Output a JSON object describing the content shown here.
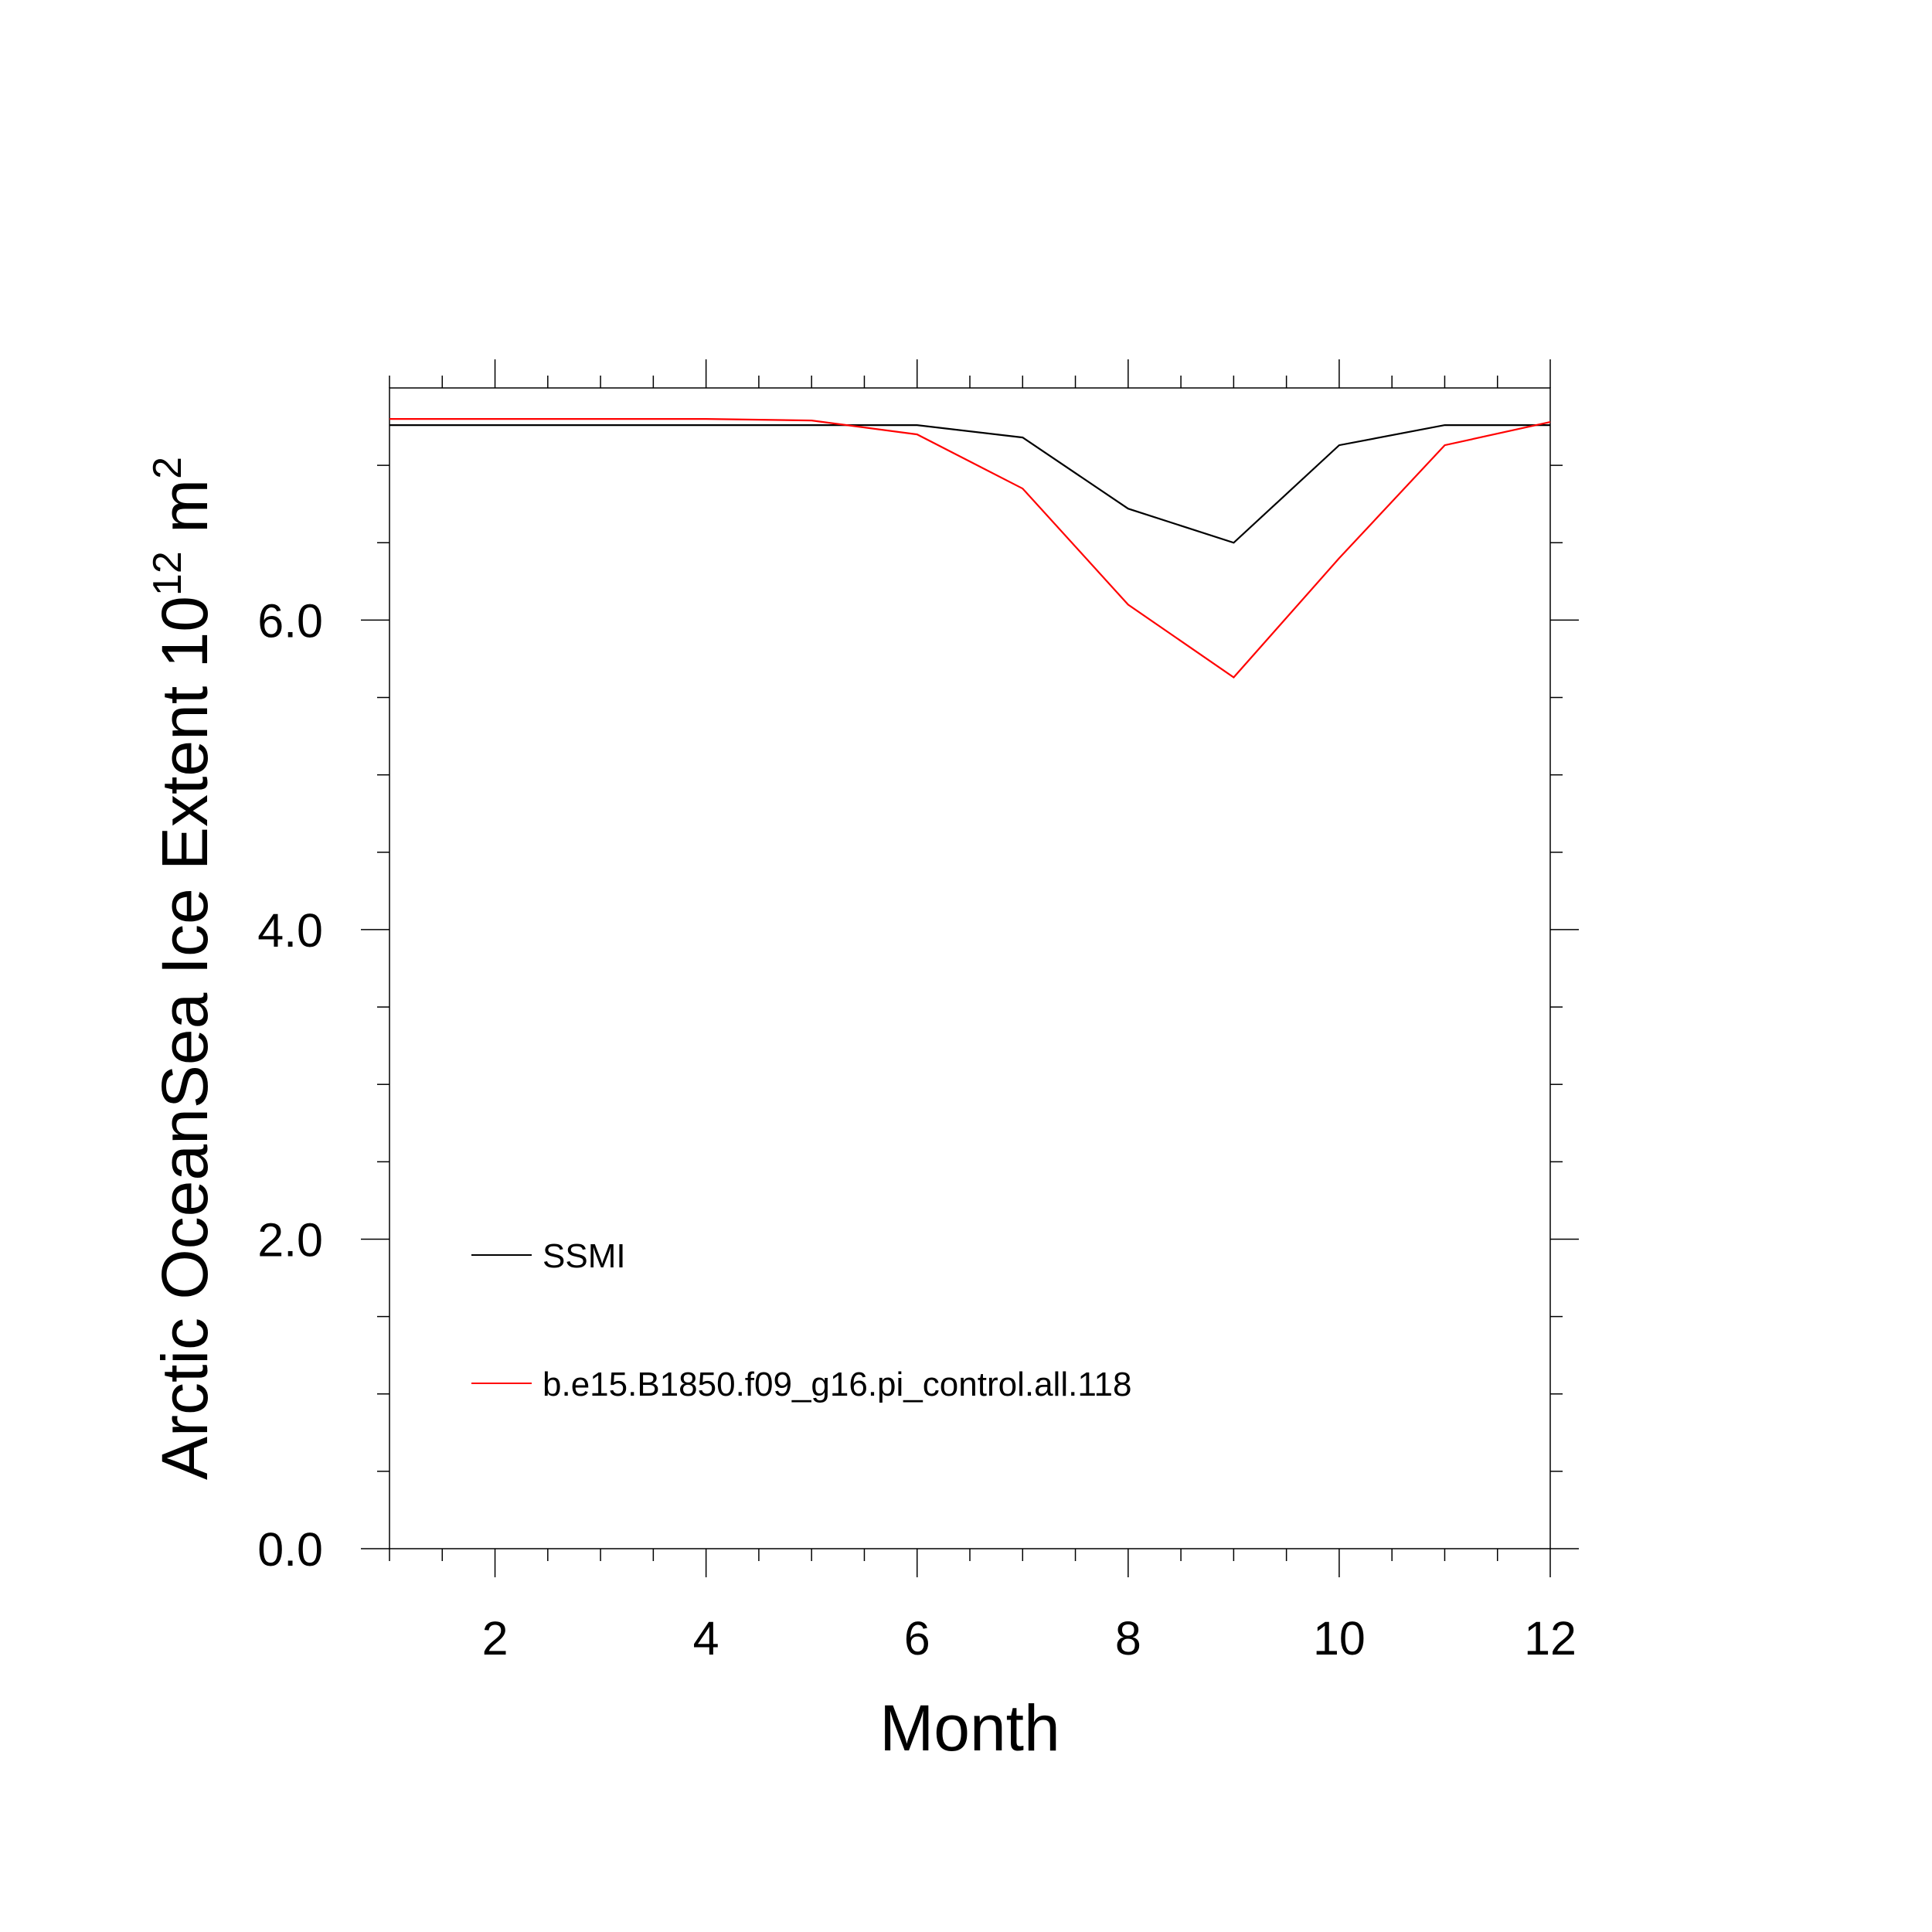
{
  "chart_data": {
    "type": "line",
    "title": "",
    "xlabel": "Month",
    "ylabel": {
      "prefix": "Arctic OceanSea Ice Extent 10",
      "exp1": "12",
      "unit": " m",
      "exp2": "2"
    },
    "xlim": [
      1,
      12
    ],
    "ylim": [
      0,
      7.5
    ],
    "x_ticks": [
      2,
      4,
      6,
      8,
      10,
      12
    ],
    "x_tick_labels": [
      "2",
      "4",
      "6",
      "8",
      "10",
      "12"
    ],
    "y_ticks": [
      0,
      2,
      4,
      6
    ],
    "y_tick_labels": [
      "0.0",
      "2.0",
      "4.0",
      "6.0"
    ],
    "grid": false,
    "legend_position": "lower-left",
    "x": [
      1,
      2,
      3,
      4,
      5,
      6,
      7,
      8,
      9,
      10,
      11,
      12
    ],
    "series": [
      {
        "name": "SSMI",
        "color": "#000000",
        "values": [
          7.26,
          7.26,
          7.26,
          7.26,
          7.26,
          7.26,
          7.18,
          6.72,
          6.5,
          7.13,
          7.26,
          7.26
        ]
      },
      {
        "name": "b.e15.B1850.f09_g16.pi_control.all.118",
        "color": "#ff0000",
        "values": [
          7.3,
          7.3,
          7.3,
          7.3,
          7.29,
          7.2,
          6.85,
          6.1,
          5.63,
          6.4,
          7.13,
          7.28
        ]
      }
    ]
  }
}
